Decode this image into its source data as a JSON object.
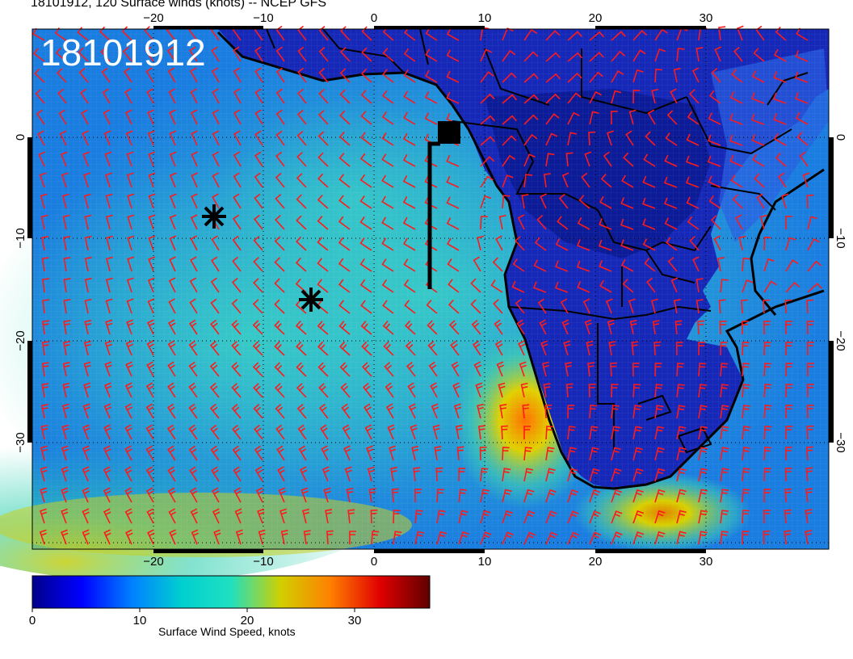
{
  "title": "18101912, 120 Surface winds (knots) -- NCEP GFS",
  "stamp": "18101912",
  "map": {
    "lon_ticks_top": [
      "−20",
      "−10",
      "0",
      "10",
      "20",
      "30"
    ],
    "lon_ticks_bottom": [
      "−20",
      "−10",
      "0",
      "10",
      "20",
      "30"
    ],
    "lat_ticks_left": [
      "0",
      "−10",
      "−20",
      "−30"
    ],
    "lat_ticks_right": [
      "0",
      "−10",
      "−20",
      "−30"
    ],
    "barb_color": "#ff1a1a",
    "coast_color": "#000000",
    "markers": [
      {
        "name": "asterisk-marker-1"
      },
      {
        "name": "asterisk-marker-2"
      },
      {
        "name": "square-marker"
      }
    ]
  },
  "colorbar": {
    "ticks": [
      "0",
      "10",
      "20",
      "30"
    ],
    "label": "Surface Wind Speed, knots",
    "min": 0,
    "max": 37,
    "colors": [
      "#00008b",
      "#0000ff",
      "#0080ff",
      "#00cfd0",
      "#20e0c0",
      "#d0d000",
      "#ff8000",
      "#e00000",
      "#600000"
    ]
  }
}
